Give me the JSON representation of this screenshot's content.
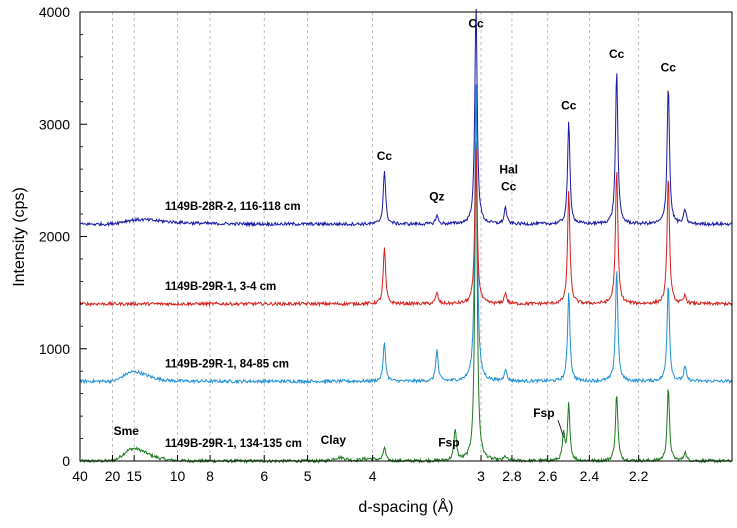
{
  "chart_data": {
    "type": "line",
    "title": "",
    "xlabel": "d-spacing (Å)",
    "ylabel": "Intensity (cps)",
    "x_scale": "reciprocal",
    "xlim": [
      40,
      1.9
    ],
    "ylim": [
      0,
      4000
    ],
    "x_ticks": [
      40,
      20,
      15,
      10,
      8,
      6,
      5,
      4,
      3,
      2.8,
      2.6,
      2.4,
      2.2
    ],
    "x_tick_labels": [
      "40",
      "20",
      "15",
      "10",
      "8",
      "6",
      "5",
      "4",
      "3",
      "2.8",
      "2.6",
      "2.4",
      "2.2"
    ],
    "y_ticks": [
      0,
      1000,
      2000,
      3000,
      4000
    ],
    "y_tick_labels": [
      "0",
      "1000",
      "2000",
      "3000",
      "4000"
    ],
    "grid": "vertical dashed",
    "series": [
      {
        "name": "1149B-29R-1, 134-135 cm",
        "color": "#1f7a1f",
        "baseline": 0,
        "broad": [
          {
            "d": 15.0,
            "h": 110,
            "w": 2.0
          },
          {
            "d": 4.45,
            "h": 30,
            "w": 0.1
          },
          {
            "d": 4.05,
            "h": 20,
            "w": 0.1
          }
        ],
        "peaks": [
          {
            "d": 3.86,
            "h": 120
          },
          {
            "d": 3.19,
            "h": 280
          },
          {
            "d": 3.035,
            "h": 2900
          },
          {
            "d": 2.84,
            "h": 40
          },
          {
            "d": 2.52,
            "h": 230
          },
          {
            "d": 2.495,
            "h": 500
          },
          {
            "d": 2.285,
            "h": 600
          },
          {
            "d": 2.095,
            "h": 650
          },
          {
            "d": 2.04,
            "h": 80
          }
        ]
      },
      {
        "name": "1149B-29R-1, 84-85 cm",
        "color": "#1e90d6",
        "baseline": 710,
        "broad": [
          {
            "d": 15.0,
            "h": 85,
            "w": 2.0
          }
        ],
        "peaks": [
          {
            "d": 3.86,
            "h": 350
          },
          {
            "d": 3.34,
            "h": 280
          },
          {
            "d": 3.035,
            "h": 2700
          },
          {
            "d": 2.84,
            "h": 110
          },
          {
            "d": 2.495,
            "h": 800
          },
          {
            "d": 2.285,
            "h": 1000
          },
          {
            "d": 2.095,
            "h": 880
          },
          {
            "d": 2.04,
            "h": 130
          }
        ]
      },
      {
        "name": "1149B-29R-1, 3-4 cm",
        "color": "#d62020",
        "baseline": 1400,
        "broad": [],
        "peaks": [
          {
            "d": 3.86,
            "h": 500
          },
          {
            "d": 3.34,
            "h": 100
          },
          {
            "d": 3.035,
            "h": 1400
          },
          {
            "d": 2.84,
            "h": 100
          },
          {
            "d": 2.495,
            "h": 1000
          },
          {
            "d": 2.285,
            "h": 1200
          },
          {
            "d": 2.095,
            "h": 1150
          },
          {
            "d": 2.04,
            "h": 70
          }
        ]
      },
      {
        "name": "1149B-28R-2, 116-118 cm",
        "color": "#1a1aa6",
        "baseline": 2110,
        "broad": [
          {
            "d": 14.0,
            "h": 40,
            "w": 3.0
          }
        ],
        "peaks": [
          {
            "d": 3.86,
            "h": 480
          },
          {
            "d": 3.34,
            "h": 80
          },
          {
            "d": 3.035,
            "h": 1950
          },
          {
            "d": 2.84,
            "h": 150
          },
          {
            "d": 2.495,
            "h": 910
          },
          {
            "d": 2.285,
            "h": 1370
          },
          {
            "d": 2.095,
            "h": 1250
          },
          {
            "d": 2.04,
            "h": 130
          }
        ]
      }
    ],
    "annotations": [
      {
        "text": "Cc",
        "d": 3.86,
        "y": 2680
      },
      {
        "text": "Qz",
        "d": 3.34,
        "y": 2320
      },
      {
        "text": "Cc",
        "d": 3.035,
        "y": 3860
      },
      {
        "text": "Hal",
        "d": 2.82,
        "y": 2560
      },
      {
        "text": "Cc",
        "d": 2.82,
        "y": 2410
      },
      {
        "text": "Cc",
        "d": 2.495,
        "y": 3130
      },
      {
        "text": "Cc",
        "d": 2.285,
        "y": 3590
      },
      {
        "text": "Cc",
        "d": 2.095,
        "y": 3470
      },
      {
        "text": "Sme",
        "d": 16.5,
        "y": 230
      },
      {
        "text": "Clay",
        "d": 4.55,
        "y": 150
      },
      {
        "text": "Fsp",
        "d": 3.24,
        "y": 130
      },
      {
        "text": "Fsp",
        "d": 2.62,
        "y": 390
      }
    ]
  }
}
